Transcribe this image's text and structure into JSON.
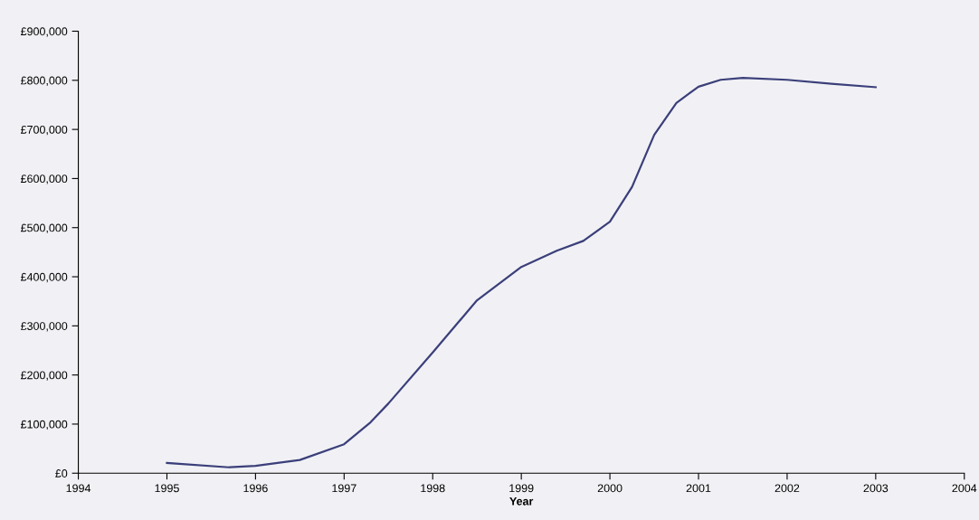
{
  "chart_data": {
    "type": "line",
    "xlabel": "Year",
    "x": [
      1995,
      1995.7,
      1996,
      1996.5,
      1997,
      1997.3,
      1997.5,
      1998,
      1998.5,
      1999,
      1999.4,
      1999.7,
      2000,
      2000.25,
      2000.5,
      2000.75,
      2001,
      2001.25,
      2001.5,
      2002,
      2002.5,
      2003
    ],
    "series": [
      {
        "color": "#3b3f7a",
        "values": [
          21000,
          12000,
          15000,
          27000,
          59000,
          104000,
          142000,
          246000,
          352000,
          420000,
          453000,
          473000,
          512000,
          583000,
          689000,
          754000,
          787000,
          801000,
          805000,
          801000,
          793000,
          786000
        ]
      }
    ],
    "xlim": [
      1994,
      2004
    ],
    "xticks": [
      1994,
      1995,
      1996,
      1997,
      1998,
      1999,
      2000,
      2001,
      2002,
      2003,
      2004
    ],
    "ylim": [
      0,
      900000
    ],
    "yticks": [
      {
        "value": 0,
        "label": "£0"
      },
      {
        "value": 100000,
        "label": "£100,000"
      },
      {
        "value": 200000,
        "label": "£200,000"
      },
      {
        "value": 300000,
        "label": "£300,000"
      },
      {
        "value": 400000,
        "label": "£400,000"
      },
      {
        "value": 500000,
        "label": "£500,000"
      },
      {
        "value": 600000,
        "label": "£600,000"
      },
      {
        "value": 700000,
        "label": "£700,000"
      },
      {
        "value": 800000,
        "label": "£800,000"
      },
      {
        "value": 900000,
        "label": "£900,000"
      }
    ],
    "grid": false,
    "marker": "none",
    "line_style": "solid"
  }
}
